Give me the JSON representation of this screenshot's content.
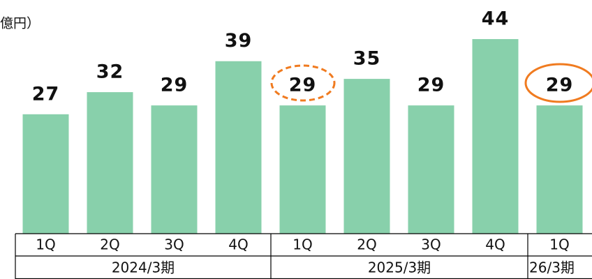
{
  "chart_data": {
    "type": "bar",
    "y_unit_label": "億円）",
    "categories": [
      "1Q",
      "2Q",
      "3Q",
      "4Q",
      "1Q",
      "2Q",
      "3Q",
      "4Q",
      "1Q"
    ],
    "values": [
      27,
      32,
      29,
      39,
      29,
      35,
      29,
      44,
      29
    ],
    "groups": [
      "2024/3期",
      "2025/3期",
      "26/3期"
    ],
    "color": "#88d0ab"
  }
}
